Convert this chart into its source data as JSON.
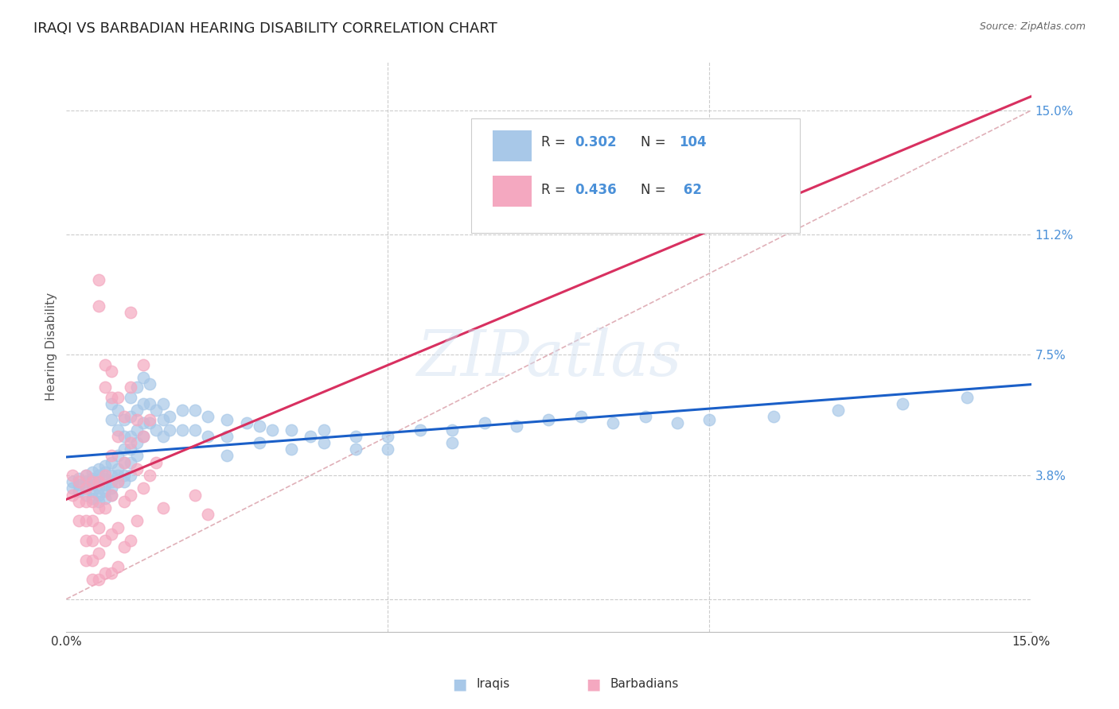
{
  "title": "IRAQI VS BARBADIAN HEARING DISABILITY CORRELATION CHART",
  "source": "Source: ZipAtlas.com",
  "ylabel": "Hearing Disability",
  "xlim": [
    0.0,
    0.15
  ],
  "ylim": [
    -0.01,
    0.165
  ],
  "ytick_vals": [
    0.0,
    0.038,
    0.075,
    0.112,
    0.15
  ],
  "ytick_labels": [
    "",
    "3.8%",
    "7.5%",
    "11.2%",
    "15.0%"
  ],
  "xtick_vals": [
    0.0,
    0.05,
    0.1,
    0.15
  ],
  "xtick_labels": [
    "0.0%",
    "",
    "",
    "15.0%"
  ],
  "watermark": "ZIPatlas",
  "color_iraqi": "#a8c8e8",
  "color_barbadian": "#f4a8c0",
  "color_line_iraqi": "#1a5fc8",
  "color_line_barbadian": "#d83060",
  "color_diagonal": "#e0b0b8",
  "color_tick_right": "#4a90d8",
  "background_color": "#ffffff",
  "title_fontsize": 13,
  "ylabel_fontsize": 11,
  "tick_fontsize": 11,
  "iraqi_points": [
    [
      0.001,
      0.036
    ],
    [
      0.001,
      0.034
    ],
    [
      0.002,
      0.037
    ],
    [
      0.002,
      0.035
    ],
    [
      0.002,
      0.033
    ],
    [
      0.003,
      0.038
    ],
    [
      0.003,
      0.036
    ],
    [
      0.003,
      0.034
    ],
    [
      0.003,
      0.032
    ],
    [
      0.004,
      0.039
    ],
    [
      0.004,
      0.037
    ],
    [
      0.004,
      0.035
    ],
    [
      0.004,
      0.033
    ],
    [
      0.004,
      0.031
    ],
    [
      0.005,
      0.04
    ],
    [
      0.005,
      0.038
    ],
    [
      0.005,
      0.036
    ],
    [
      0.005,
      0.034
    ],
    [
      0.005,
      0.032
    ],
    [
      0.005,
      0.03
    ],
    [
      0.006,
      0.041
    ],
    [
      0.006,
      0.039
    ],
    [
      0.006,
      0.037
    ],
    [
      0.006,
      0.035
    ],
    [
      0.006,
      0.033
    ],
    [
      0.006,
      0.031
    ],
    [
      0.007,
      0.06
    ],
    [
      0.007,
      0.055
    ],
    [
      0.007,
      0.042
    ],
    [
      0.007,
      0.038
    ],
    [
      0.007,
      0.036
    ],
    [
      0.007,
      0.034
    ],
    [
      0.007,
      0.032
    ],
    [
      0.008,
      0.058
    ],
    [
      0.008,
      0.052
    ],
    [
      0.008,
      0.044
    ],
    [
      0.008,
      0.04
    ],
    [
      0.008,
      0.038
    ],
    [
      0.008,
      0.036
    ],
    [
      0.009,
      0.055
    ],
    [
      0.009,
      0.05
    ],
    [
      0.009,
      0.046
    ],
    [
      0.009,
      0.042
    ],
    [
      0.009,
      0.038
    ],
    [
      0.009,
      0.036
    ],
    [
      0.01,
      0.062
    ],
    [
      0.01,
      0.056
    ],
    [
      0.01,
      0.05
    ],
    [
      0.01,
      0.046
    ],
    [
      0.01,
      0.042
    ],
    [
      0.01,
      0.038
    ],
    [
      0.011,
      0.065
    ],
    [
      0.011,
      0.058
    ],
    [
      0.011,
      0.052
    ],
    [
      0.011,
      0.048
    ],
    [
      0.011,
      0.044
    ],
    [
      0.012,
      0.068
    ],
    [
      0.012,
      0.06
    ],
    [
      0.012,
      0.054
    ],
    [
      0.012,
      0.05
    ],
    [
      0.013,
      0.066
    ],
    [
      0.013,
      0.06
    ],
    [
      0.013,
      0.054
    ],
    [
      0.014,
      0.058
    ],
    [
      0.014,
      0.052
    ],
    [
      0.015,
      0.06
    ],
    [
      0.015,
      0.055
    ],
    [
      0.015,
      0.05
    ],
    [
      0.016,
      0.056
    ],
    [
      0.016,
      0.052
    ],
    [
      0.018,
      0.058
    ],
    [
      0.018,
      0.052
    ],
    [
      0.02,
      0.058
    ],
    [
      0.02,
      0.052
    ],
    [
      0.022,
      0.056
    ],
    [
      0.022,
      0.05
    ],
    [
      0.025,
      0.055
    ],
    [
      0.025,
      0.05
    ],
    [
      0.025,
      0.044
    ],
    [
      0.028,
      0.054
    ],
    [
      0.03,
      0.053
    ],
    [
      0.03,
      0.048
    ],
    [
      0.032,
      0.052
    ],
    [
      0.035,
      0.052
    ],
    [
      0.035,
      0.046
    ],
    [
      0.038,
      0.05
    ],
    [
      0.04,
      0.052
    ],
    [
      0.04,
      0.048
    ],
    [
      0.045,
      0.05
    ],
    [
      0.045,
      0.046
    ],
    [
      0.05,
      0.05
    ],
    [
      0.05,
      0.046
    ],
    [
      0.055,
      0.052
    ],
    [
      0.06,
      0.052
    ],
    [
      0.06,
      0.048
    ],
    [
      0.065,
      0.054
    ],
    [
      0.07,
      0.053
    ],
    [
      0.075,
      0.055
    ],
    [
      0.08,
      0.056
    ],
    [
      0.085,
      0.054
    ],
    [
      0.09,
      0.056
    ],
    [
      0.095,
      0.054
    ],
    [
      0.1,
      0.055
    ],
    [
      0.11,
      0.056
    ],
    [
      0.12,
      0.058
    ],
    [
      0.13,
      0.06
    ],
    [
      0.14,
      0.062
    ]
  ],
  "barbadian_points": [
    [
      0.001,
      0.038
    ],
    [
      0.001,
      0.032
    ],
    [
      0.002,
      0.036
    ],
    [
      0.002,
      0.03
    ],
    [
      0.002,
      0.024
    ],
    [
      0.003,
      0.038
    ],
    [
      0.003,
      0.034
    ],
    [
      0.003,
      0.03
    ],
    [
      0.003,
      0.024
    ],
    [
      0.003,
      0.018
    ],
    [
      0.003,
      0.012
    ],
    [
      0.004,
      0.036
    ],
    [
      0.004,
      0.03
    ],
    [
      0.004,
      0.024
    ],
    [
      0.004,
      0.018
    ],
    [
      0.004,
      0.012
    ],
    [
      0.004,
      0.006
    ],
    [
      0.005,
      0.098
    ],
    [
      0.005,
      0.09
    ],
    [
      0.005,
      0.036
    ],
    [
      0.005,
      0.028
    ],
    [
      0.005,
      0.022
    ],
    [
      0.005,
      0.014
    ],
    [
      0.005,
      0.006
    ],
    [
      0.006,
      0.072
    ],
    [
      0.006,
      0.065
    ],
    [
      0.006,
      0.038
    ],
    [
      0.006,
      0.028
    ],
    [
      0.006,
      0.018
    ],
    [
      0.006,
      0.008
    ],
    [
      0.007,
      0.07
    ],
    [
      0.007,
      0.062
    ],
    [
      0.007,
      0.044
    ],
    [
      0.007,
      0.032
    ],
    [
      0.007,
      0.02
    ],
    [
      0.007,
      0.008
    ],
    [
      0.008,
      0.062
    ],
    [
      0.008,
      0.05
    ],
    [
      0.008,
      0.036
    ],
    [
      0.008,
      0.022
    ],
    [
      0.008,
      0.01
    ],
    [
      0.009,
      0.056
    ],
    [
      0.009,
      0.042
    ],
    [
      0.009,
      0.03
    ],
    [
      0.009,
      0.016
    ],
    [
      0.01,
      0.088
    ],
    [
      0.01,
      0.065
    ],
    [
      0.01,
      0.048
    ],
    [
      0.01,
      0.032
    ],
    [
      0.01,
      0.018
    ],
    [
      0.011,
      0.055
    ],
    [
      0.011,
      0.04
    ],
    [
      0.011,
      0.024
    ],
    [
      0.012,
      0.072
    ],
    [
      0.012,
      0.05
    ],
    [
      0.012,
      0.034
    ],
    [
      0.013,
      0.055
    ],
    [
      0.013,
      0.038
    ],
    [
      0.014,
      0.042
    ],
    [
      0.015,
      0.028
    ],
    [
      0.02,
      0.032
    ],
    [
      0.022,
      0.026
    ]
  ]
}
